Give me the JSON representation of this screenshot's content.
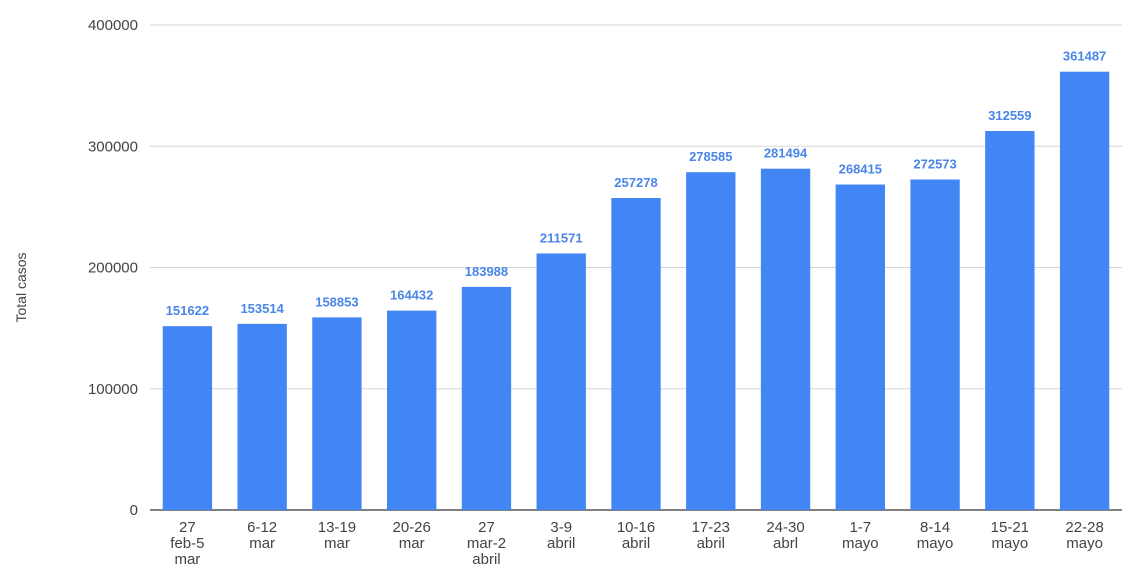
{
  "chart_data": {
    "type": "bar",
    "title": "",
    "xlabel": "",
    "ylabel": "Total casos",
    "ylim": [
      0,
      400000
    ],
    "yticks": [
      "0",
      "100000",
      "200000",
      "300000",
      "400000"
    ],
    "ytick_values": [
      0,
      100000,
      200000,
      300000,
      400000
    ],
    "grid": true,
    "legend": "none",
    "categories": [
      [
        "27",
        "feb-5",
        "mar"
      ],
      [
        "6-12",
        "mar"
      ],
      [
        "13-19",
        "mar"
      ],
      [
        "20-26",
        "mar"
      ],
      [
        "27",
        "mar-2",
        "abril"
      ],
      [
        "3-9",
        "abril"
      ],
      [
        "10-16",
        "abril"
      ],
      [
        "17-23",
        "abril"
      ],
      [
        "24-30",
        "abrl"
      ],
      [
        "1-7",
        "mayo"
      ],
      [
        "8-14",
        "mayo"
      ],
      [
        "15-21",
        "mayo"
      ],
      [
        "22-28",
        "mayo"
      ]
    ],
    "values": [
      151622,
      153514,
      158853,
      164432,
      183988,
      211571,
      257278,
      278585,
      281494,
      268415,
      272573,
      312559,
      361487
    ],
    "data_labels": [
      "151622",
      "153514",
      "158853",
      "164432",
      "183988",
      "211571",
      "257278",
      "278585",
      "281494",
      "268415",
      "272573",
      "312559",
      "361487"
    ],
    "colors": {
      "bar": "#4285f4",
      "label": "#4a86e8"
    }
  }
}
